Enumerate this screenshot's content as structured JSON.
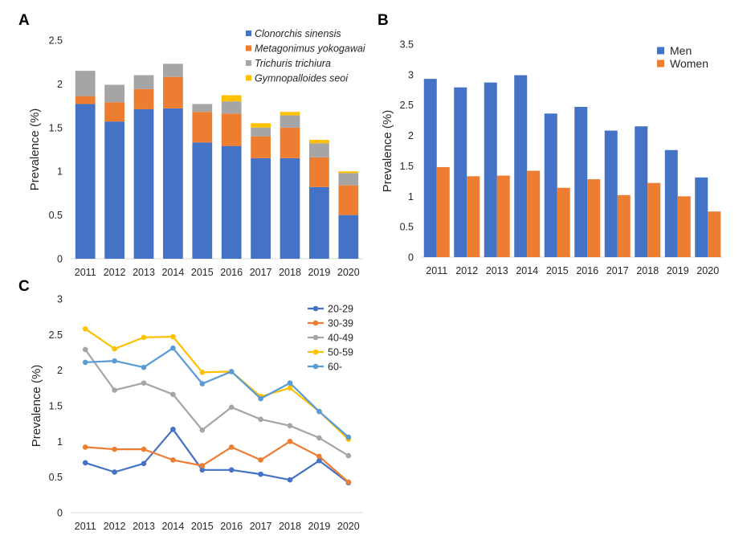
{
  "chart_data": [
    {
      "panel": "A",
      "type": "bar",
      "stacked": true,
      "ylabel": "Prevalence (%)",
      "ylim": [
        0,
        2.5
      ],
      "yticks": [
        "0",
        "0.5",
        "1",
        "1.5",
        "2",
        "2.5"
      ],
      "categories": [
        "2011",
        "2012",
        "2013",
        "2014",
        "2015",
        "2016",
        "2017",
        "2018",
        "2019",
        "2020"
      ],
      "legend_position": "top-right",
      "series": [
        {
          "name": "Clonorchis sinensis",
          "color": "#4472C4",
          "values": [
            1.77,
            1.57,
            1.71,
            1.72,
            1.33,
            1.29,
            1.15,
            1.15,
            0.82,
            0.5
          ]
        },
        {
          "name": "Metagonimus yokogawai",
          "color": "#ED7D31",
          "values": [
            0.09,
            0.22,
            0.23,
            0.36,
            0.35,
            0.37,
            0.25,
            0.35,
            0.34,
            0.34
          ]
        },
        {
          "name": "Trichuris trichiura",
          "color": "#A5A5A5",
          "values": [
            0.29,
            0.2,
            0.16,
            0.15,
            0.09,
            0.14,
            0.1,
            0.14,
            0.16,
            0.14
          ]
        },
        {
          "name": "Gymnopalloides seoi",
          "color": "#FFC000",
          "values": [
            0,
            0,
            0,
            0,
            0,
            0.07,
            0.05,
            0.04,
            0.04,
            0.02
          ]
        }
      ]
    },
    {
      "panel": "B",
      "type": "bar",
      "ylabel": "Prevalence (%)",
      "ylim": [
        0,
        3.5
      ],
      "yticks": [
        "0",
        "0.5",
        "1",
        "1.5",
        "2",
        "2.5",
        "3",
        "3.5"
      ],
      "categories": [
        "2011",
        "2012",
        "2013",
        "2014",
        "2015",
        "2016",
        "2017",
        "2018",
        "2019",
        "2020"
      ],
      "legend_position": "top-right",
      "series": [
        {
          "name": "Men",
          "color": "#4472C4",
          "values": [
            2.93,
            2.79,
            2.87,
            2.99,
            2.36,
            2.47,
            2.08,
            2.15,
            1.76,
            1.31
          ]
        },
        {
          "name": "Women",
          "color": "#ED7D31",
          "values": [
            1.48,
            1.33,
            1.34,
            1.42,
            1.14,
            1.28,
            1.02,
            1.22,
            1.0,
            0.75
          ]
        }
      ]
    },
    {
      "panel": "C",
      "type": "line",
      "ylabel": "Prevalence (%)",
      "ylim": [
        0,
        3
      ],
      "yticks": [
        "0",
        "0.5",
        "1",
        "1.5",
        "2",
        "2.5",
        "3"
      ],
      "categories": [
        "2011",
        "2012",
        "2013",
        "2014",
        "2015",
        "2016",
        "2017",
        "2018",
        "2019",
        "2020"
      ],
      "legend_position": "top-right",
      "series": [
        {
          "name": "20-29",
          "color": "#4472C4",
          "values": [
            0.7,
            0.57,
            0.69,
            1.17,
            0.6,
            0.6,
            0.54,
            0.46,
            0.73,
            0.42
          ]
        },
        {
          "name": "30-39",
          "color": "#ED7D31",
          "values": [
            0.92,
            0.89,
            0.89,
            0.74,
            0.66,
            0.92,
            0.74,
            1.0,
            0.79,
            0.43
          ]
        },
        {
          "name": "40-49",
          "color": "#A5A5A5",
          "values": [
            2.29,
            1.72,
            1.82,
            1.66,
            1.16,
            1.48,
            1.31,
            1.22,
            1.05,
            0.8
          ]
        },
        {
          "name": "50-59",
          "color": "#FFC000",
          "values": [
            2.58,
            2.3,
            2.46,
            2.47,
            1.97,
            1.98,
            1.63,
            1.75,
            1.42,
            1.03
          ]
        },
        {
          "name": "60-",
          "color": "#5B9BD5",
          "values": [
            2.11,
            2.13,
            2.04,
            2.31,
            1.81,
            1.98,
            1.6,
            1.82,
            1.42,
            1.06
          ]
        }
      ]
    }
  ]
}
